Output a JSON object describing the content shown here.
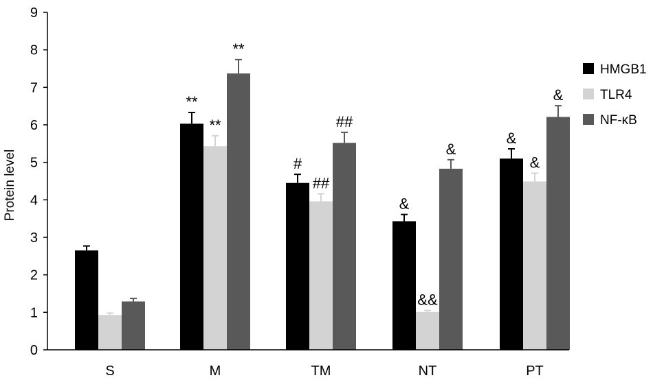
{
  "chart_data": {
    "type": "bar",
    "title": "",
    "xlabel": "",
    "ylabel": "Protein level",
    "ylim": [
      0,
      9
    ],
    "yticks": [
      "0",
      "1",
      "2",
      "3",
      "4",
      "5",
      "6",
      "7",
      "8",
      "9"
    ],
    "grid": false,
    "legend_position": "right",
    "categories": [
      "S",
      "M",
      "TM",
      "NT",
      "PT"
    ],
    "series": [
      {
        "name": "HMGB1",
        "color": "#000000",
        "values": [
          2.65,
          6.03,
          4.45,
          3.43,
          5.1
        ],
        "errors": [
          0.12,
          0.3,
          0.23,
          0.18,
          0.26
        ],
        "annotations": [
          "",
          "**",
          "#",
          "&",
          "&"
        ]
      },
      {
        "name": "TLR4",
        "color": "#d3d3d3",
        "values": [
          0.93,
          5.43,
          3.96,
          1.01,
          4.49
        ],
        "errors": [
          0.05,
          0.28,
          0.2,
          0.04,
          0.22
        ],
        "annotations": [
          "",
          "**",
          "##",
          "&&",
          "&"
        ]
      },
      {
        "name": "NF-κB",
        "color": "#595959",
        "values": [
          1.29,
          7.37,
          5.52,
          4.83,
          6.21
        ],
        "errors": [
          0.08,
          0.37,
          0.28,
          0.24,
          0.3
        ],
        "annotations": [
          "",
          "**",
          "##",
          "&",
          "&"
        ]
      }
    ]
  }
}
